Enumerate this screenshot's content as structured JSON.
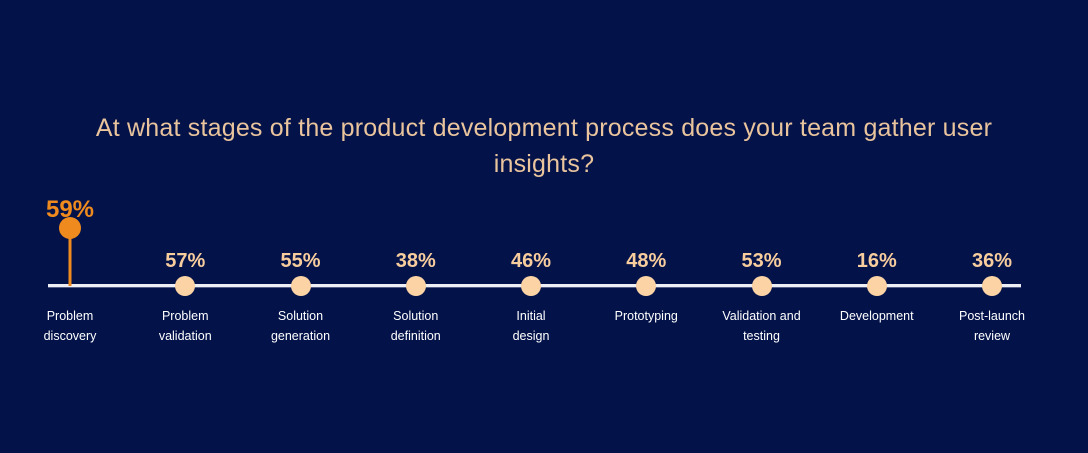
{
  "chart_data": {
    "type": "scatter",
    "variant": "timeline-dot-plot",
    "title": "At what stages of the product development process does your team gather user insights?",
    "categories": [
      "Problem discovery",
      "Problem validation",
      "Solution generation",
      "Solution definition",
      "Initial design",
      "Prototyping",
      "Validation and testing",
      "Development",
      "Post-launch review"
    ],
    "category_display": [
      "Problem\ndiscovery",
      "Problem\nvalidation",
      "Solution\ngeneration",
      "Solution\ndefinition",
      "Initial\ndesign",
      "Prototyping",
      "Validation and\ntesting",
      "Development",
      "Post-launch\nreview"
    ],
    "values": [
      59,
      57,
      55,
      38,
      46,
      48,
      53,
      16,
      36
    ],
    "value_suffix": "%",
    "highlighted_index": 0,
    "legend": "none",
    "grid": "off",
    "colors": {
      "background": "#031249",
      "title": "#e9c49d",
      "value_label": "#f8cd9e",
      "dot": "#fbd3a4",
      "highlight": "#ef8b1e",
      "axis_line": "#edeff5",
      "category_label": "#ffffff"
    }
  }
}
